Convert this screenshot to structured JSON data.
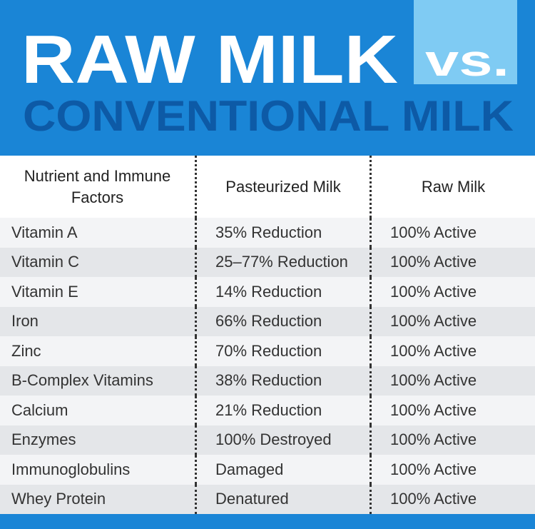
{
  "header": {
    "title": "RAW MILK",
    "vs": "vs.",
    "subtitle": "CONVENTIONAL MILK"
  },
  "table": {
    "columns": [
      "Nutrient and Immune Factors",
      "Pasteurized Milk",
      "Raw Milk"
    ],
    "rows": [
      [
        "Vitamin A",
        "35% Reduction",
        "100% Active"
      ],
      [
        "Vitamin C",
        "25–77% Reduction",
        "100% Active"
      ],
      [
        "Vitamin E",
        "14% Reduction",
        "100% Active"
      ],
      [
        "Iron",
        "66% Reduction",
        "100% Active"
      ],
      [
        "Zinc",
        "70% Reduction",
        "100% Active"
      ],
      [
        "B-Complex Vitamins",
        "38% Reduction",
        "100% Active"
      ],
      [
        "Calcium",
        "21% Reduction",
        "100% Active"
      ],
      [
        "Enzymes",
        "100% Destroyed",
        "100% Active"
      ],
      [
        "Immunoglobulins",
        "Damaged",
        "100% Active"
      ],
      [
        "Whey Protein",
        "Denatured",
        "100% Active"
      ]
    ]
  }
}
